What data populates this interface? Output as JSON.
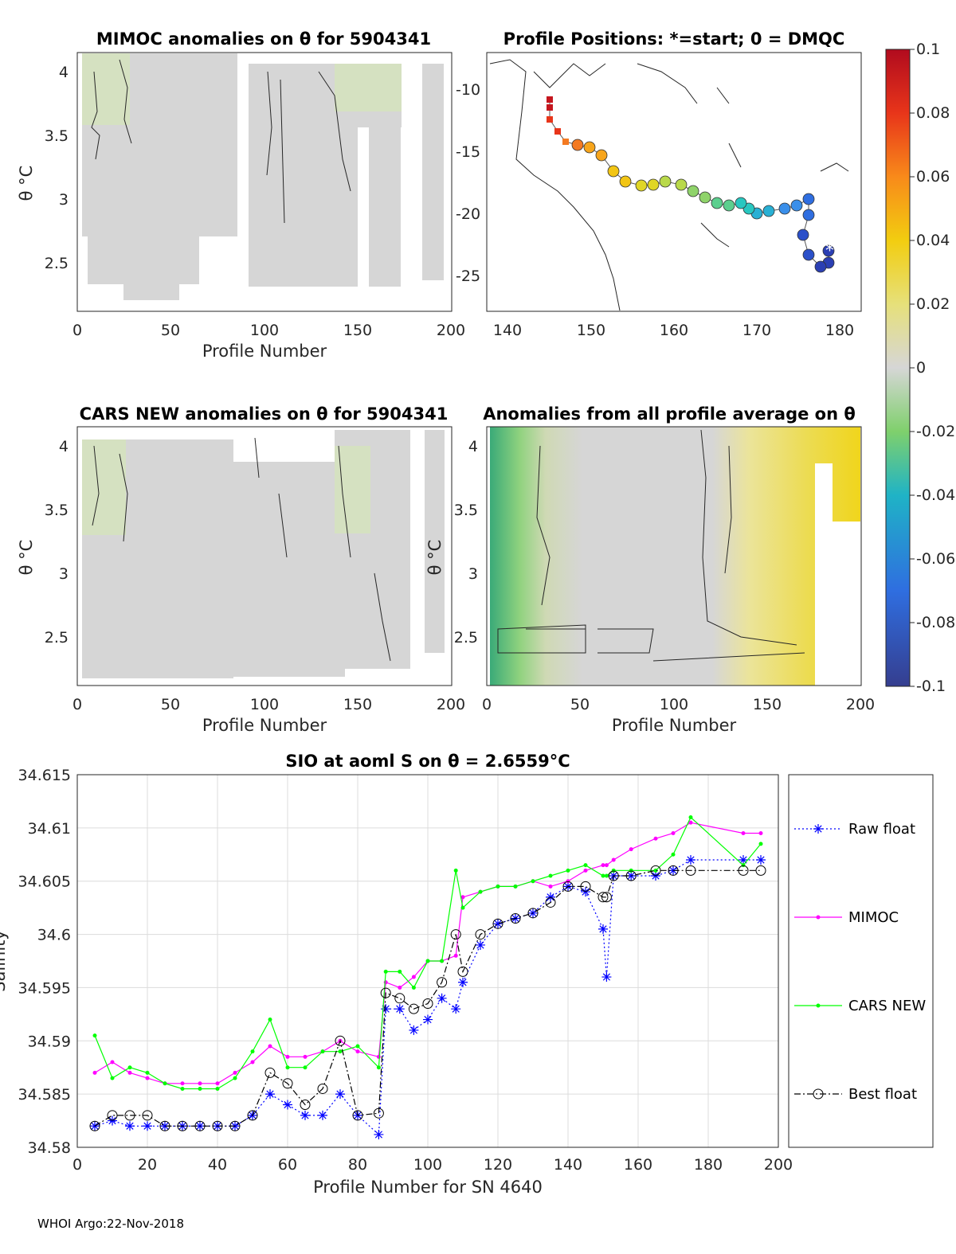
{
  "footer": "WHOI Argo:22-Nov-2018",
  "colorbar": {
    "ticks": [
      "0.1",
      "0.08",
      "0.06",
      "0.04",
      "0.02",
      "0",
      "-0.02",
      "-0.04",
      "-0.06",
      "-0.08",
      "-0.1"
    ],
    "range": [
      -0.1,
      0.1
    ]
  },
  "panels": {
    "mimoc": {
      "title": "MIMOC anomalies on θ  for 5904341",
      "ylabel": "θ °C",
      "xlabel": "Profile Number",
      "xticks": [
        "0",
        "50",
        "100",
        "150",
        "200"
      ],
      "yticks": [
        "4",
        "3.5",
        "3",
        "2.5"
      ]
    },
    "positions": {
      "title": "Profile Positions: *=start; 0 = DMQC",
      "xticks": [
        "140",
        "150",
        "160",
        "170",
        "180"
      ],
      "yticks": [
        "-10",
        "-15",
        "-20",
        "-25"
      ]
    },
    "cars": {
      "title": "CARS NEW anomalies on θ for 5904341",
      "ylabel": "θ °C",
      "xlabel": "Profile Number",
      "xticks": [
        "0",
        "50",
        "100",
        "150",
        "200"
      ],
      "yticks": [
        "4",
        "3.5",
        "3",
        "2.5"
      ]
    },
    "avg": {
      "title": "Anomalies from all profile average on θ",
      "ylabel": "θ °C",
      "xlabel": "Profile Number",
      "xticks": [
        "0",
        "50",
        "100",
        "150",
        "200"
      ],
      "yticks": [
        "4",
        "3.5",
        "3",
        "2.5"
      ]
    }
  },
  "chart_data": {
    "type": "line",
    "title": "SIO at aoml S on θ = 2.6559°C",
    "xlabel": "Profile Number for SN 4640",
    "ylabel": "Salinity",
    "xlim": [
      0,
      200
    ],
    "ylim": [
      34.58,
      34.615
    ],
    "xticks": [
      "0",
      "20",
      "40",
      "60",
      "80",
      "100",
      "120",
      "140",
      "160",
      "180",
      "200"
    ],
    "yticks": [
      "34.58",
      "34.585",
      "34.59",
      "34.595",
      "34.6",
      "34.605",
      "34.61",
      "34.615"
    ],
    "x": [
      5,
      10,
      15,
      20,
      25,
      30,
      35,
      40,
      45,
      50,
      55,
      60,
      65,
      70,
      75,
      80,
      86,
      88,
      92,
      96,
      100,
      104,
      108,
      110,
      115,
      120,
      125,
      130,
      135,
      140,
      145,
      150,
      151,
      153,
      158,
      165,
      170,
      175,
      190,
      195
    ],
    "series": [
      {
        "name": "Raw float",
        "color": "#0000ff",
        "style": "dotted-star",
        "values": [
          34.582,
          34.5825,
          34.582,
          34.582,
          34.582,
          34.582,
          34.582,
          34.582,
          34.582,
          34.583,
          34.585,
          34.584,
          34.583,
          34.583,
          34.585,
          34.583,
          34.5812,
          34.593,
          34.593,
          34.591,
          34.592,
          34.594,
          34.593,
          34.5955,
          34.599,
          34.601,
          34.6015,
          34.602,
          34.6035,
          34.6045,
          34.604,
          34.6005,
          34.596,
          34.6055,
          34.6055,
          34.6055,
          34.606,
          34.607,
          34.607,
          34.607
        ]
      },
      {
        "name": "MIMOC",
        "color": "#ff00ff",
        "style": "dot",
        "values": [
          34.587,
          34.588,
          34.587,
          34.5865,
          34.586,
          34.586,
          34.586,
          34.586,
          34.587,
          34.588,
          34.5895,
          34.5885,
          34.5885,
          34.589,
          34.59,
          34.589,
          34.5885,
          34.5955,
          34.595,
          34.596,
          34.5975,
          34.5975,
          34.598,
          34.6035,
          34.604,
          34.6045,
          34.6045,
          34.605,
          34.6045,
          34.605,
          34.606,
          34.6065,
          34.6065,
          34.607,
          34.608,
          34.609,
          34.6095,
          34.6105,
          34.6095,
          34.6095
        ]
      },
      {
        "name": "CARS NEW",
        "color": "#00ff00",
        "style": "dot",
        "values": [
          34.5905,
          34.5865,
          34.5875,
          34.587,
          34.586,
          34.5855,
          34.5855,
          34.5855,
          34.5865,
          34.589,
          34.592,
          34.5875,
          34.5875,
          34.589,
          34.589,
          34.5895,
          34.5875,
          34.5965,
          34.5965,
          34.595,
          34.5975,
          34.5975,
          34.606,
          34.6025,
          34.604,
          34.6045,
          34.6045,
          34.605,
          34.6055,
          34.606,
          34.6065,
          34.6055,
          34.6055,
          34.606,
          34.606,
          34.606,
          34.6075,
          34.611,
          34.6065,
          34.6085
        ]
      },
      {
        "name": "Best float",
        "color": "#000000",
        "style": "dashdot-circle",
        "values": [
          34.582,
          34.583,
          34.583,
          34.583,
          34.582,
          34.582,
          34.582,
          34.582,
          34.582,
          34.583,
          34.587,
          34.586,
          34.584,
          34.5855,
          34.59,
          34.583,
          34.5832,
          34.5945,
          34.594,
          34.593,
          34.5935,
          34.5955,
          34.6,
          34.5965,
          34.6,
          34.601,
          34.6015,
          34.602,
          34.603,
          34.6045,
          34.6045,
          34.6035,
          34.6035,
          34.6055,
          34.6055,
          34.606,
          34.606,
          34.606,
          34.606,
          34.606
        ]
      }
    ],
    "legend": [
      "Raw float",
      "MIMOC",
      "CARS NEW",
      "Best float"
    ]
  }
}
